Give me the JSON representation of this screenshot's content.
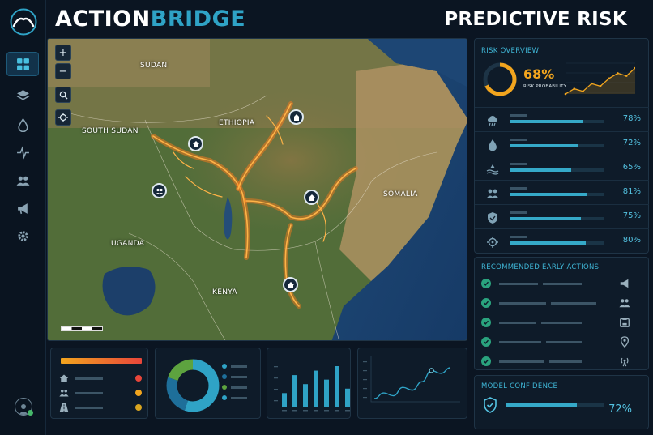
{
  "brand": {
    "part1": "ACTION",
    "part2": "BRIDGE"
  },
  "page_title": "PREDICTIVE RISK",
  "nav": [
    {
      "name": "dashboard",
      "icon": "grid-icon",
      "active": true
    },
    {
      "name": "layers",
      "icon": "layers-icon"
    },
    {
      "name": "water",
      "icon": "droplet-icon"
    },
    {
      "name": "activity",
      "icon": "pulse-icon"
    },
    {
      "name": "people",
      "icon": "users-icon"
    },
    {
      "name": "alerts",
      "icon": "megaphone-icon"
    },
    {
      "name": "settings",
      "icon": "gear-icon"
    }
  ],
  "map": {
    "zoom_in": "+",
    "zoom_out": "−",
    "labels": {
      "sudan": "SUDAN",
      "south_sudan": "SOUTH SUDAN",
      "ethiopia": "ETHIOPIA",
      "somalia": "SOMALIA",
      "uganda": "UGANDA",
      "kenya": "KENYA"
    }
  },
  "risk_overview": {
    "title": "RISK OVERVIEW",
    "probability": "68%",
    "probability_value": 68,
    "probability_label": "RISK PROBABILITY",
    "trend": [
      3,
      4,
      3.5,
      5,
      4.5,
      6,
      7,
      6.5,
      8
    ],
    "rows": [
      {
        "icon": "rain-cloud-icon",
        "value": "78%",
        "level": 78
      },
      {
        "icon": "droplet-icon",
        "value": "72%",
        "level": 72
      },
      {
        "icon": "flood-icon",
        "value": "65%",
        "level": 65
      },
      {
        "icon": "people-icon",
        "value": "81%",
        "level": 81
      },
      {
        "icon": "shield-icon",
        "value": "75%",
        "level": 75
      },
      {
        "icon": "crosshair-icon",
        "value": "80%",
        "level": 80
      }
    ]
  },
  "early_actions": {
    "title": "RECOMMENDED EARLY ACTIONS",
    "rows": [
      {
        "icon": "megaphone-icon"
      },
      {
        "icon": "users-icon"
      },
      {
        "icon": "supplies-icon"
      },
      {
        "icon": "location-pin-icon"
      },
      {
        "icon": "broadcast-icon"
      }
    ]
  },
  "model_confidence": {
    "title": "MODEL CONFIDENCE",
    "value": "72%",
    "level": 72
  },
  "bottom": {
    "legend_items": [
      {
        "icon": "house-icon",
        "color": "#e8463a"
      },
      {
        "icon": "users-icon",
        "color": "#f2a51e"
      },
      {
        "icon": "road-icon",
        "color": "#d9a520"
      }
    ],
    "donut": [
      {
        "value": 55,
        "color": "#2fa3c6"
      },
      {
        "value": 25,
        "color": "#1e6f9a"
      },
      {
        "value": 20,
        "color": "#5da33f"
      }
    ],
    "bar_values": [
      3,
      7,
      5,
      8,
      6,
      9,
      4
    ],
    "line_values": [
      2,
      3,
      2.5,
      4,
      3.5,
      5,
      7,
      6.5,
      7.5
    ]
  },
  "colors": {
    "accent": "#2fa3c6",
    "warning": "#f2a51e",
    "danger": "#e8463a",
    "success": "#2aa37e"
  }
}
